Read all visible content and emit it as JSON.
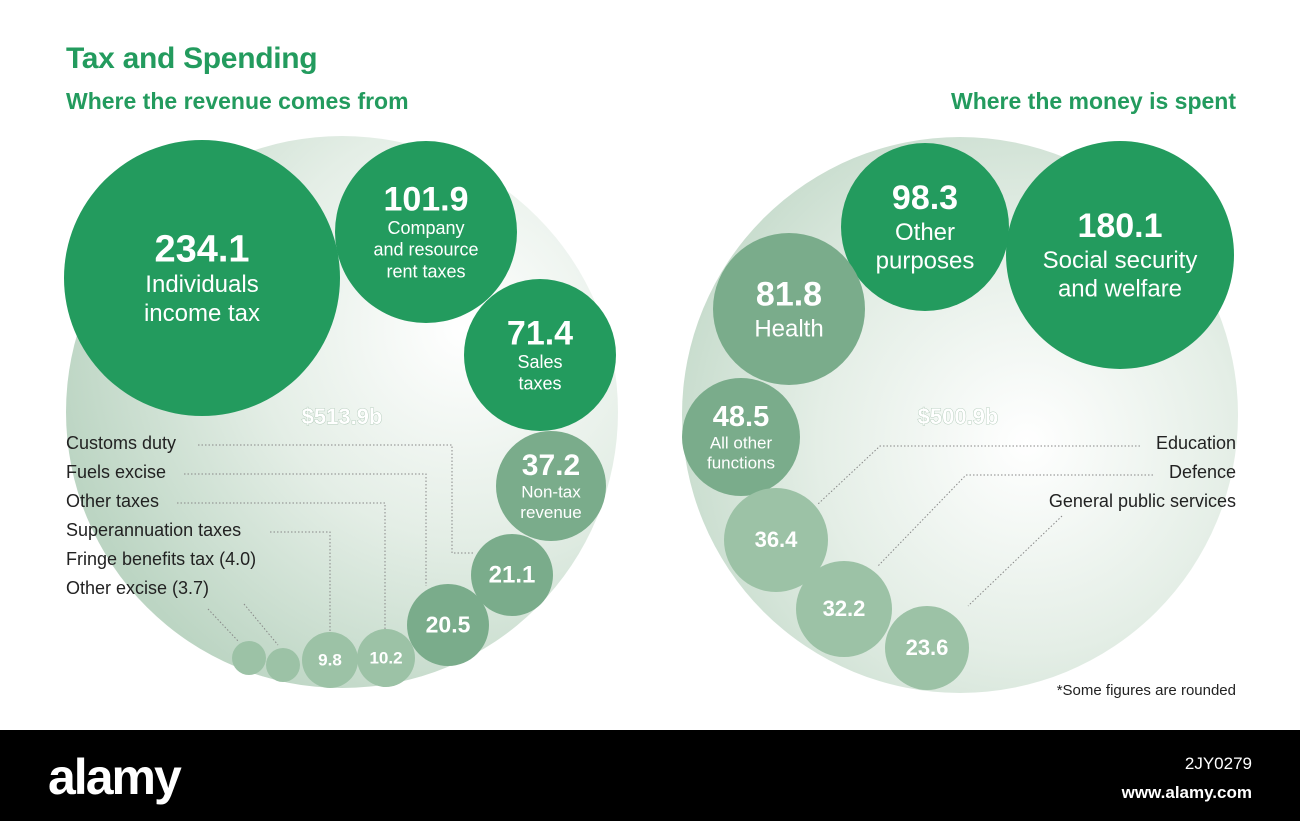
{
  "title": "Tax and Spending",
  "colors": {
    "dark": "#239b5e",
    "mid": "#7aac8b",
    "light": "#9cc2a6",
    "backdrop": "#cfe0d3",
    "label_text": "#222222",
    "leader": "#888888"
  },
  "chart_data": [
    {
      "type": "bubble",
      "subtitle": "Where the revenue comes from",
      "total_label": "$513.9b",
      "bubbles": [
        {
          "value": 234.1,
          "label_lines": [
            "Individuals",
            "income tax"
          ]
        },
        {
          "value": 101.9,
          "label_lines": [
            "Company",
            "and resource",
            "rent taxes"
          ]
        },
        {
          "value": 71.4,
          "label_lines": [
            "Sales",
            "taxes"
          ]
        },
        {
          "value": 37.2,
          "label_lines": [
            "Non-tax",
            "revenue"
          ]
        },
        {
          "value": 21.1,
          "label_lines": [],
          "legend_label": "Customs duty"
        },
        {
          "value": 20.5,
          "label_lines": [],
          "legend_label": "Fuels excise"
        },
        {
          "value": 10.2,
          "label_lines": [],
          "legend_label": "Other taxes"
        },
        {
          "value": 9.8,
          "label_lines": [],
          "legend_label": "Superannuation taxes"
        },
        {
          "value": 4.0,
          "label_lines": [],
          "legend_label": "Fringe benefits tax (4.0)"
        },
        {
          "value": 3.7,
          "label_lines": [],
          "legend_label": "Other excise (3.7)"
        }
      ]
    },
    {
      "type": "bubble",
      "subtitle": "Where the money is spent",
      "total_label": "$500.9b",
      "bubbles": [
        {
          "value": 180.1,
          "label_lines": [
            "Social security",
            "and welfare"
          ]
        },
        {
          "value": 98.3,
          "label_lines": [
            "Other",
            "purposes"
          ]
        },
        {
          "value": 81.8,
          "label_lines": [
            "Health"
          ]
        },
        {
          "value": 48.5,
          "label_lines": [
            "All other",
            "functions"
          ]
        },
        {
          "value": 36.4,
          "label_lines": [],
          "legend_label": "Education"
        },
        {
          "value": 32.2,
          "label_lines": [],
          "legend_label": "Defence"
        },
        {
          "value": 23.6,
          "label_lines": [],
          "legend_label": "General public services"
        }
      ]
    }
  ],
  "footnote": "*Some figures are rounded",
  "footer": {
    "logo": "alamy",
    "image_id": "2JY0279",
    "url": "www.alamy.com"
  }
}
